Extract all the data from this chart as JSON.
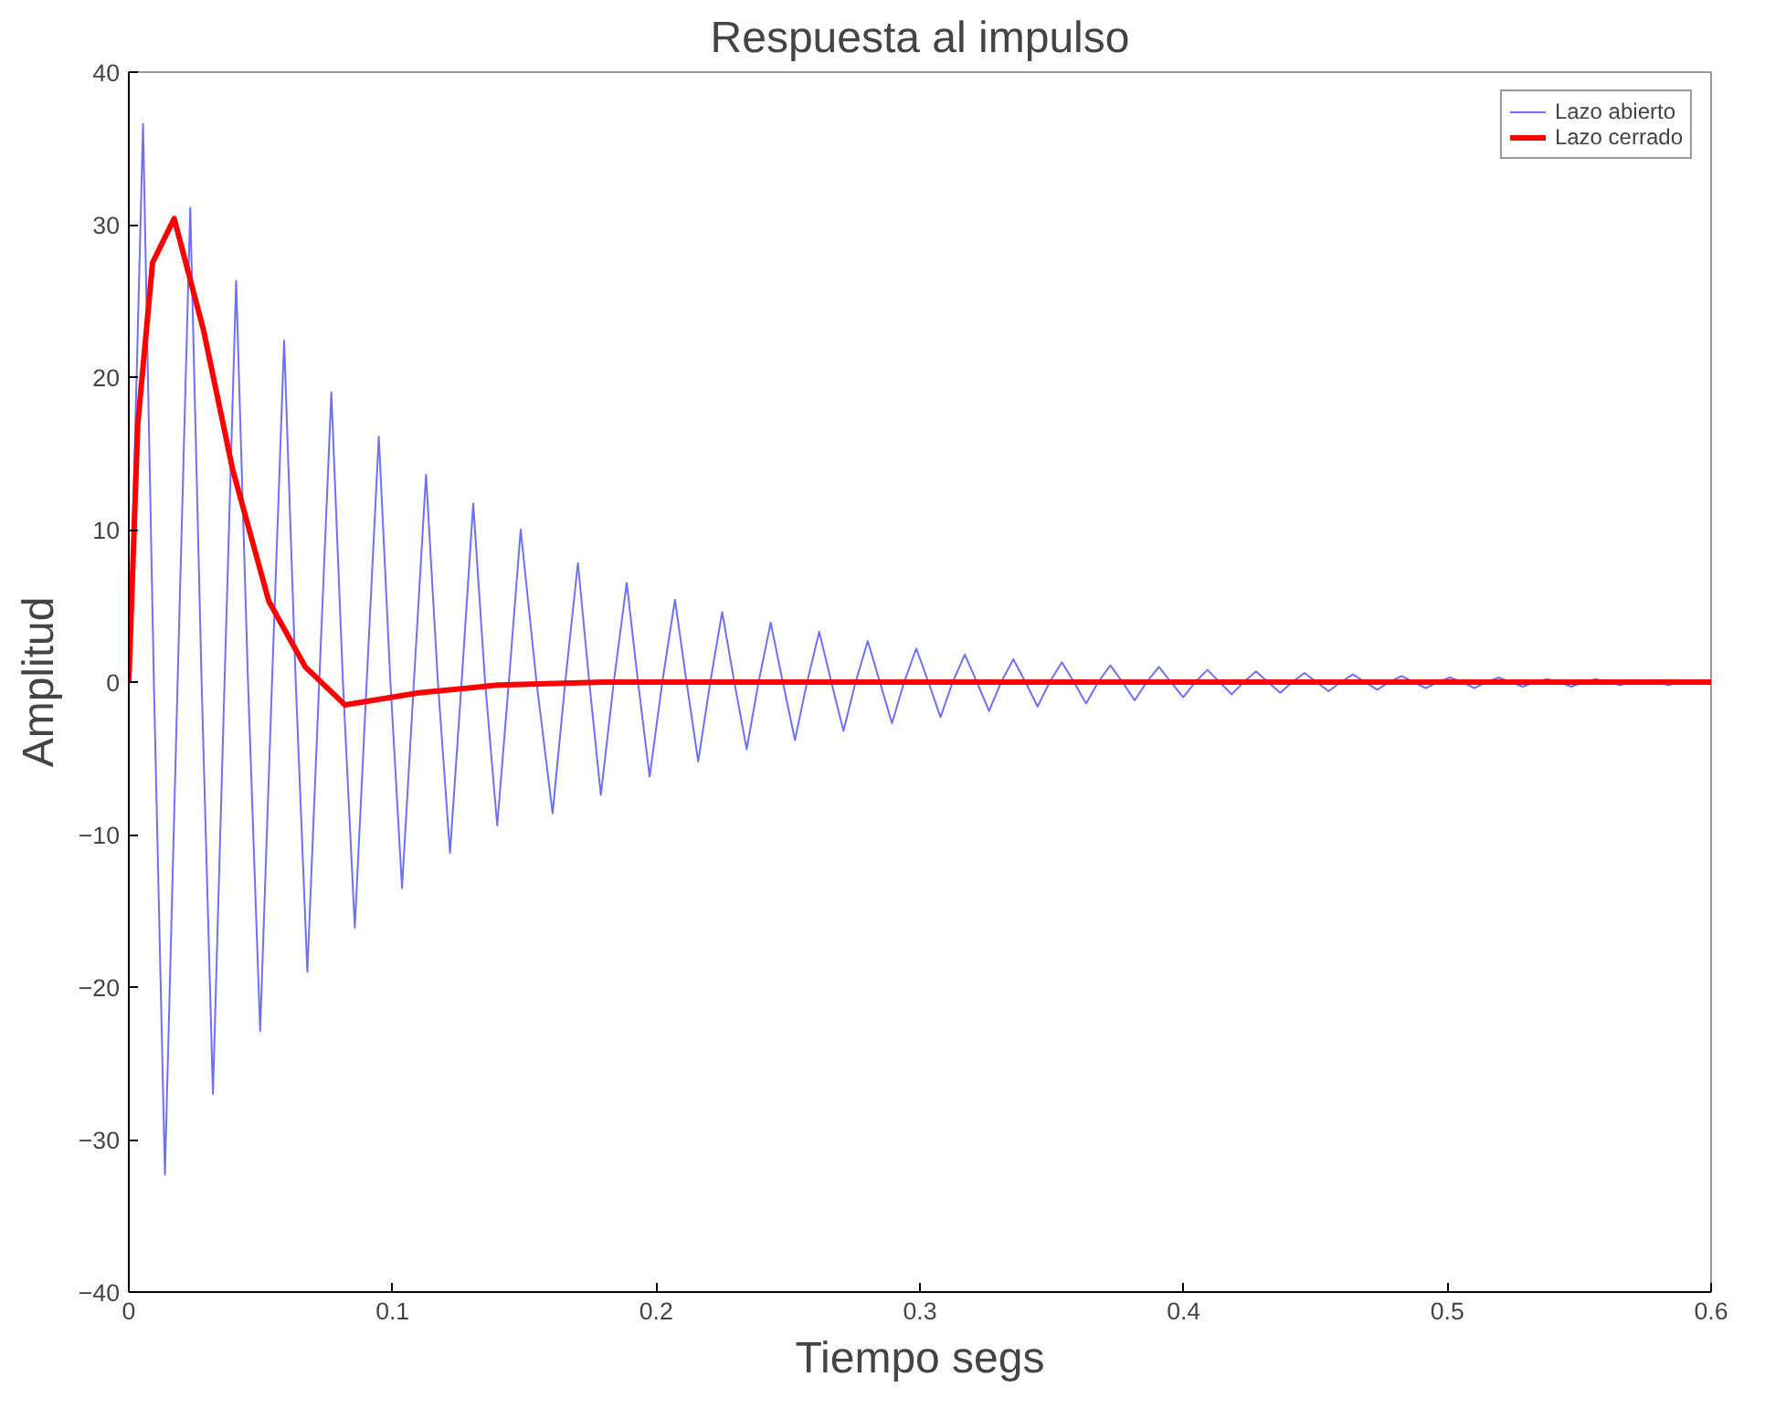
{
  "chart_data": {
    "type": "line",
    "title": "Respuesta al impulso",
    "xlabel": "Tiempo segs",
    "ylabel": "Amplitud",
    "xlim": [
      0,
      0.6
    ],
    "xticks": [
      0,
      0.1,
      0.2,
      0.3,
      0.4,
      0.5,
      0.6
    ],
    "ylim": [
      -40,
      40
    ],
    "yticks": [
      -40,
      -30,
      -20,
      -10,
      0,
      10,
      20,
      30,
      40
    ],
    "grid": false,
    "legend": "top right",
    "marker": "none",
    "line_style": "solid",
    "series": [
      {
        "name": "Lazo abierto",
        "color": "#6f6fff",
        "x": [
          0,
          0.0054,
          0.0095,
          0.0137,
          0.0185,
          0.0233,
          0.0276,
          0.0319,
          0.0363,
          0.0407,
          0.0452,
          0.0498,
          0.0543,
          0.0589,
          0.0633,
          0.0677,
          0.0722,
          0.0768,
          0.0812,
          0.0857,
          0.0902,
          0.0948,
          0.0992,
          0.1036,
          0.1081,
          0.1127,
          0.1172,
          0.1218,
          0.1262,
          0.1306,
          0.1351,
          0.1397,
          0.1441,
          0.1486,
          0.1546,
          0.1607,
          0.1655,
          0.1703,
          0.1746,
          0.179,
          0.1839,
          0.1888,
          0.1931,
          0.1975,
          0.2023,
          0.2071,
          0.2115,
          0.2159,
          0.2205,
          0.225,
          0.2296,
          0.2343,
          0.2388,
          0.2434,
          0.248,
          0.2526,
          0.2572,
          0.2618,
          0.2664,
          0.271,
          0.2756,
          0.2802,
          0.2848,
          0.2894,
          0.294,
          0.2986,
          0.3032,
          0.3078,
          0.3124,
          0.317,
          0.3216,
          0.3262,
          0.3308,
          0.3354,
          0.34,
          0.3446,
          0.3492,
          0.3538,
          0.3584,
          0.363,
          0.3676,
          0.3722,
          0.3768,
          0.3814,
          0.386,
          0.3906,
          0.3952,
          0.3998,
          0.4044,
          0.409,
          0.4136,
          0.4182,
          0.4228,
          0.4274,
          0.432,
          0.4366,
          0.4412,
          0.4458,
          0.4504,
          0.455,
          0.4596,
          0.4642,
          0.4688,
          0.4734,
          0.478,
          0.4826,
          0.4872,
          0.4918,
          0.4964,
          0.501,
          0.5056,
          0.5102,
          0.5148,
          0.5194,
          0.524,
          0.5286,
          0.5332,
          0.5378,
          0.5424,
          0.547,
          0.5516,
          0.5562,
          0.5608,
          0.5654,
          0.57,
          0.5746,
          0.5792,
          0.5838,
          0.5884
        ],
        "values": [
          0,
          36.6,
          0,
          -32.3,
          0,
          31.1,
          0,
          -27,
          0,
          26.3,
          0,
          -22.9,
          0,
          22.4,
          0,
          -19,
          0,
          19,
          0,
          -16.1,
          0,
          16.1,
          0,
          -13.5,
          0,
          13.6,
          0,
          -11.2,
          0,
          11.7,
          0,
          -9.4,
          0,
          10,
          0,
          -8.6,
          0,
          7.8,
          0,
          -7.4,
          0,
          6.5,
          0,
          -6.2,
          0,
          5.4,
          0,
          -5.2,
          0,
          4.6,
          0,
          -4.4,
          0,
          3.9,
          0,
          -3.8,
          0,
          3.3,
          0,
          -3.2,
          0,
          2.7,
          0,
          -2.7,
          0,
          2.2,
          0,
          -2.3,
          0,
          1.8,
          0,
          -1.9,
          0,
          1.5,
          0,
          -1.6,
          0,
          1.3,
          0,
          -1.4,
          0,
          1.1,
          0,
          -1.2,
          0,
          1,
          0,
          -1,
          0,
          0.8,
          0,
          -0.8,
          0,
          0.7,
          0,
          -0.7,
          0,
          0.6,
          0,
          -0.6,
          0,
          0.5,
          0,
          -0.5,
          0,
          0.4,
          0,
          -0.4,
          0,
          0.3,
          0,
          -0.4,
          0,
          0.3,
          0,
          -0.3,
          0,
          0.2,
          0,
          -0.3,
          0,
          0.2,
          0,
          -0.2,
          0,
          0.1,
          0,
          -0.2,
          0
        ]
      },
      {
        "name": "Lazo cerrado",
        "color": "#ff0000",
        "x": [
          0,
          0.0034,
          0.009,
          0.0172,
          0.0283,
          0.0393,
          0.0531,
          0.0669,
          0.082,
          0.11,
          0.14,
          0.18,
          0.6
        ],
        "values": [
          0,
          16.9,
          27.5,
          30.4,
          23.1,
          14,
          5.3,
          1,
          -1.5,
          -0.7,
          -0.2,
          0,
          0
        ]
      }
    ]
  }
}
